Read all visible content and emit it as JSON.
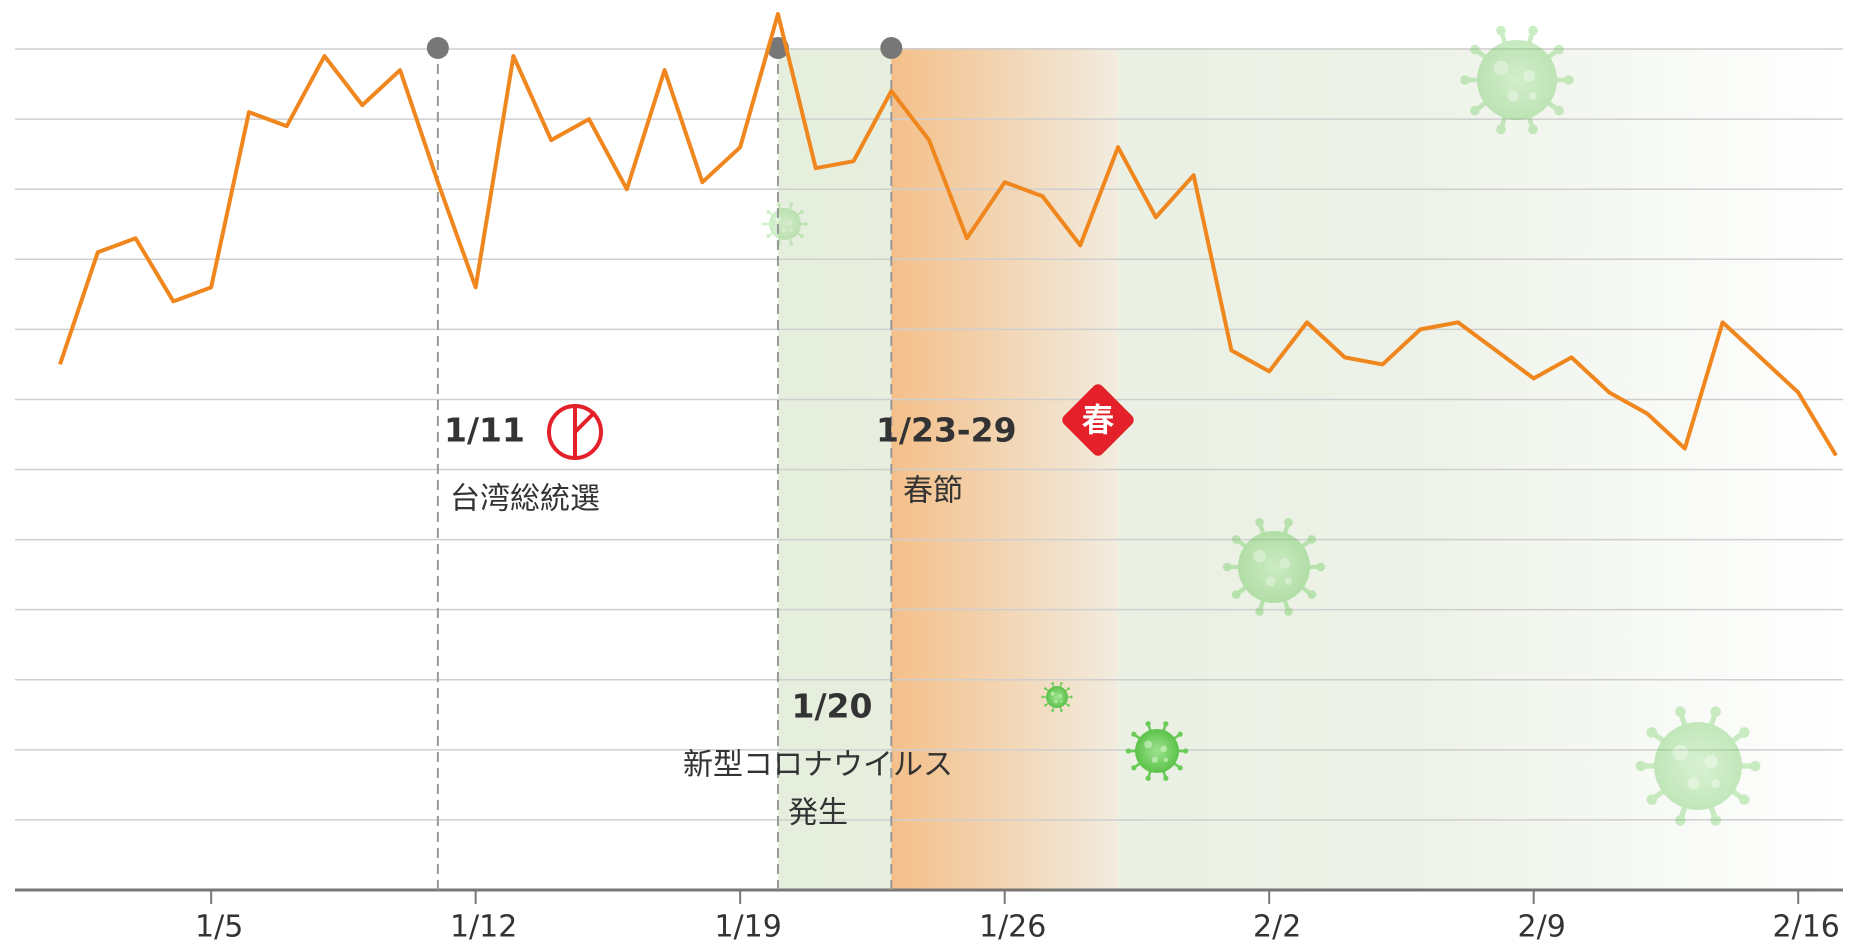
{
  "chart_data": {
    "type": "line",
    "categories": [
      null,
      null,
      null,
      null,
      "1/5",
      null,
      null,
      null,
      null,
      null,
      null,
      "1/12",
      null,
      null,
      null,
      null,
      null,
      null,
      "1/19",
      null,
      null,
      null,
      null,
      null,
      null,
      "1/26",
      null,
      null,
      null,
      null,
      null,
      null,
      "2/2",
      null,
      null,
      null,
      null,
      null,
      null,
      "2/9",
      null,
      null,
      null,
      null,
      null,
      null,
      "2/16",
      null
    ],
    "series": [
      {
        "name": null,
        "color": "#f0871e",
        "values": [
          7.5,
          9.1,
          9.3,
          8.4,
          8.6,
          11.1,
          10.9,
          11.9,
          11.2,
          11.7,
          10.1,
          8.6,
          11.9,
          10.7,
          11.0,
          10.0,
          11.7,
          10.1,
          10.6,
          12.5,
          10.3,
          10.4,
          11.4,
          10.7,
          9.3,
          10.1,
          9.9,
          9.2,
          10.6,
          9.6,
          10.2,
          7.7,
          7.4,
          8.1,
          7.6,
          7.5,
          8.0,
          8.1,
          7.7,
          7.3,
          7.6,
          7.1,
          6.8,
          6.3,
          8.1,
          7.6,
          7.1,
          6.2
        ]
      }
    ],
    "ylim": [
      0,
      12.7
    ],
    "yticks": [
      0,
      1,
      2,
      3,
      4,
      5,
      6,
      7,
      8,
      9,
      10,
      11,
      12
    ],
    "grid": true,
    "annotations": [
      {
        "date": "1/11",
        "text": "台湾総統選"
      },
      {
        "date": "1/20",
        "text": "新型コロナウイルス",
        "text2": "発生"
      },
      {
        "date": "1/23-29",
        "text": "春節",
        "icon": "春"
      }
    ]
  }
}
